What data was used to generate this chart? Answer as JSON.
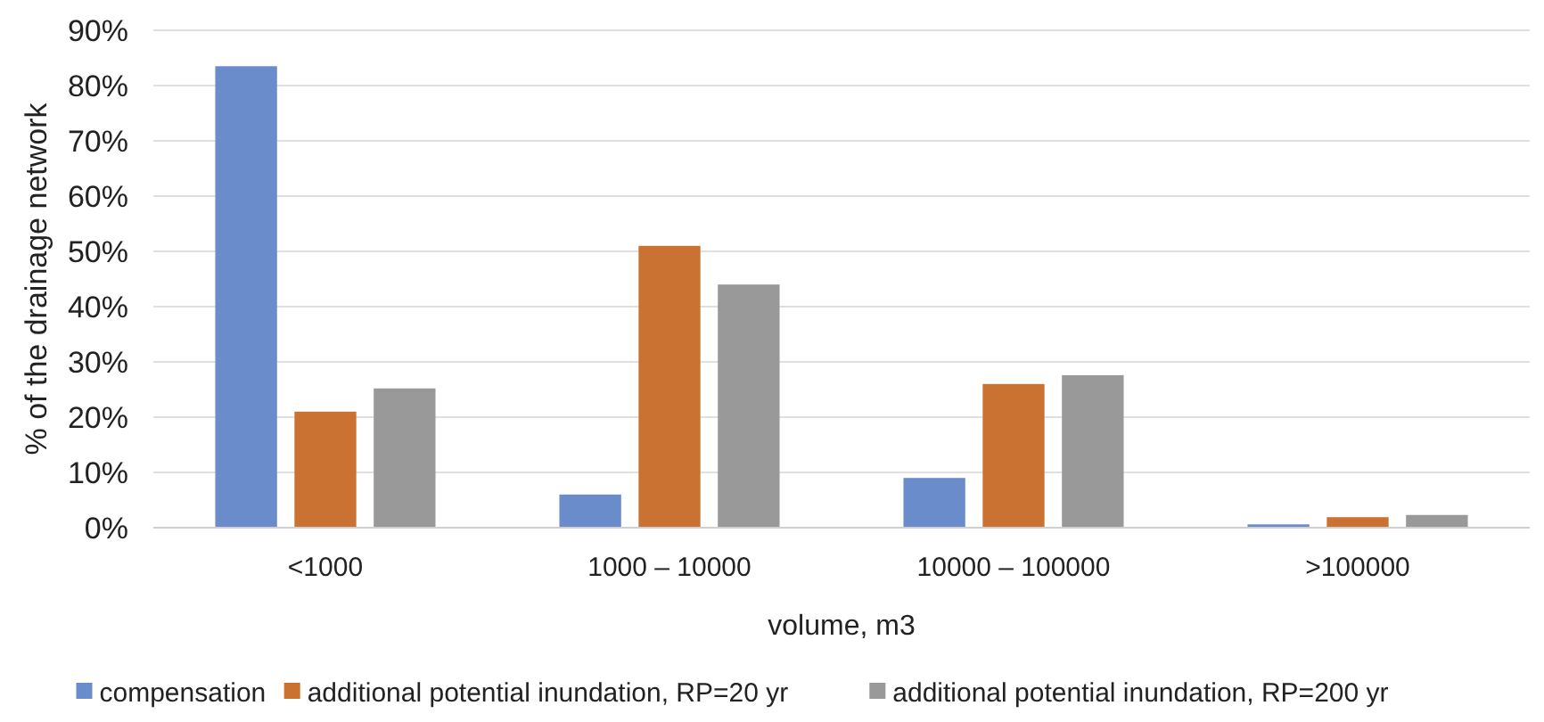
{
  "chart_data": {
    "type": "bar",
    "xlabel": "volume, m3",
    "ylabel": "% of the drainage network",
    "categories": [
      "<1000",
      "1000 – 10000",
      "10000 – 100000",
      ">100000"
    ],
    "series": [
      {
        "name": "compensation",
        "color": "#6a8cca",
        "values": [
          83.5,
          6,
          9,
          0.6
        ]
      },
      {
        "name": "additional potential inundation, RP=20 yr",
        "color": "#c97231",
        "values": [
          21,
          51,
          26,
          1.9
        ]
      },
      {
        "name": "additional potential inundation, RP=200 yr",
        "color": "#999999",
        "values": [
          25.2,
          44,
          27.6,
          2.3
        ]
      }
    ],
    "ylim": [
      0,
      90
    ],
    "yticks": [
      {
        "value": 0,
        "label": "0%"
      },
      {
        "value": 10,
        "label": "10%"
      },
      {
        "value": 20,
        "label": "20%"
      },
      {
        "value": 30,
        "label": "30%"
      },
      {
        "value": 40,
        "label": "40%"
      },
      {
        "value": 50,
        "label": "50%"
      },
      {
        "value": 60,
        "label": "60%"
      },
      {
        "value": 70,
        "label": "70%"
      },
      {
        "value": 80,
        "label": "80%"
      },
      {
        "value": 90,
        "label": "90%"
      }
    ],
    "grid": "y",
    "legend": "bottom"
  }
}
